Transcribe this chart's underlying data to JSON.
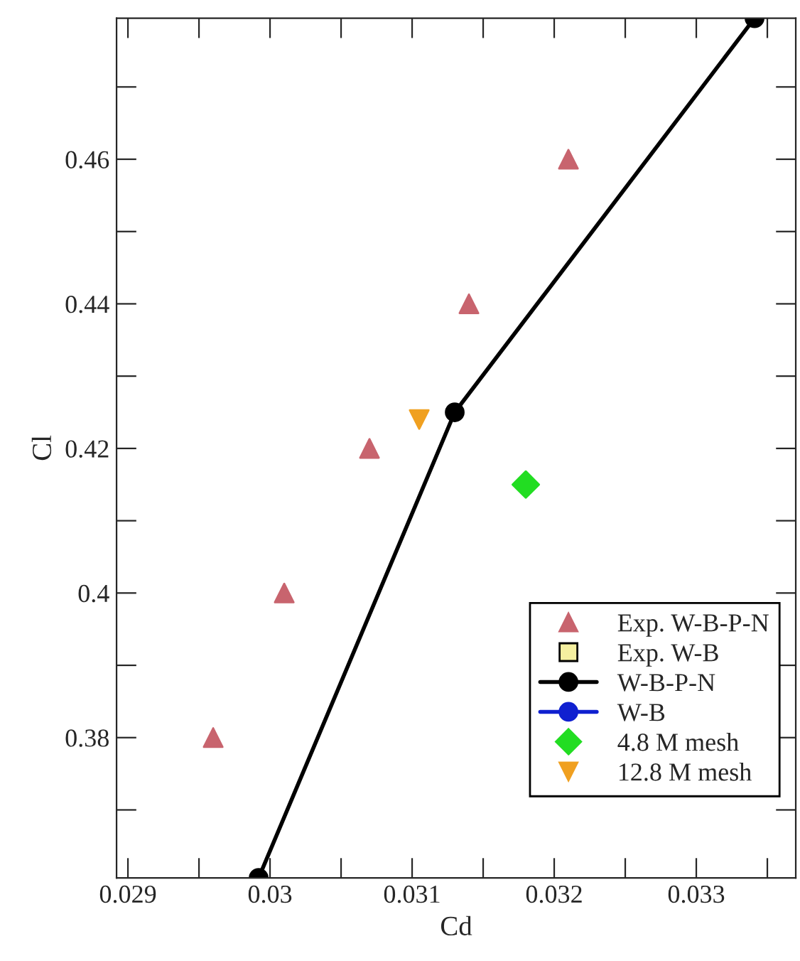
{
  "chart_data": {
    "type": "scatter",
    "xlabel": "Cd",
    "ylabel": "Cl",
    "xlim": [
      0.02892,
      0.0337
    ],
    "ylim": [
      0.3606,
      0.4795
    ],
    "xticks": [
      0.029,
      {
        "value": 0.0295,
        "label": null
      },
      0.03,
      {
        "value": 0.0305,
        "label": null
      },
      0.031,
      {
        "value": 0.0315,
        "label": null
      },
      0.032,
      {
        "value": 0.0325,
        "label": null
      },
      0.033,
      {
        "value": 0.0335,
        "label": null
      }
    ],
    "yticks": [
      {
        "value": 0.37,
        "label": null
      },
      0.38,
      {
        "value": 0.39,
        "label": null
      },
      0.4,
      {
        "value": 0.41,
        "label": null
      },
      0.42,
      {
        "value": 0.43,
        "label": null
      },
      0.44,
      {
        "value": 0.45,
        "label": null
      },
      0.46,
      {
        "value": 0.47,
        "label": null
      }
    ],
    "grid": false,
    "legend": "bottom right",
    "series": [
      {
        "name": "Exp. W-B-P-N",
        "marker": "triangle",
        "color": "#c8646e",
        "x": [
          0.0296,
          0.0301,
          0.0307,
          0.0314,
          0.0321
        ],
        "values": [
          0.38,
          0.4,
          0.42,
          0.44,
          0.46
        ]
      },
      {
        "name": "Exp. W-B",
        "marker": "square",
        "color": "#f5f0a0"
      },
      {
        "name": "W-B-P-N",
        "type": "line",
        "marker": "circle",
        "color": "#000000",
        "x": [
          0.02992,
          0.0313,
          0.03341
        ],
        "values": [
          0.3606,
          0.425,
          0.4795
        ]
      },
      {
        "name": "W-B",
        "type": "line",
        "marker": "circle",
        "color": "#1020d0"
      },
      {
        "name": "4.8 M mesh",
        "marker": "diamond",
        "color": "#22dd22",
        "x": [
          0.0318
        ],
        "values": [
          0.415
        ]
      },
      {
        "name": "12.8 M mesh",
        "marker": "triangle_down",
        "color": "#f0a020",
        "x": [
          0.03105
        ],
        "values": [
          0.424
        ]
      }
    ]
  }
}
